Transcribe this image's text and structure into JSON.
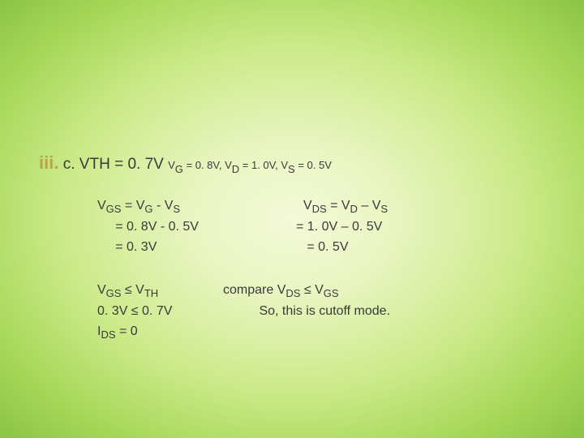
{
  "heading": {
    "iii": "iii.",
    "c": " c. VTH = 0. 7V ",
    "tail_vg": "V",
    "tail_vg_sub": "G",
    "tail_vg_val": " = 0. 8V, V",
    "tail_vd_sub": "D",
    "tail_vd_val": " = 1. 0V, V",
    "tail_vs_sub": "S",
    "tail_vs_val": " = 0. 5V"
  },
  "b1": {
    "l1a": "V",
    "l1a_sub": "GS",
    "l1b": " = V",
    "l1b_sub": "G",
    "l1c": " - V",
    "l1c_sub": "S",
    "l2": "     = 0. 8V - 0. 5V",
    "l3": "     = 0. 3V",
    "r1a": "  V",
    "r1a_sub": "DS",
    "r1b": " = V",
    "r1b_sub": "D",
    "r1c": " – V",
    "r1c_sub": "S",
    "r2": "= 1. 0V – 0. 5V",
    "r3": "   = 0. 5V"
  },
  "b2": {
    "l1a": "V",
    "l1a_sub": "GS",
    "l1b": " ≤ V",
    "l1b_sub": "TH",
    "l2": "0. 3V ≤ 0. 7V",
    "l3a": "I",
    "l3a_sub": "DS",
    "l3b": " = 0",
    "r1a": "compare V",
    "r1a_sub": "DS",
    "r1b": " ≤ V",
    "r1b_sub": "GS",
    "r2": "          So, this is cutoff mode."
  }
}
